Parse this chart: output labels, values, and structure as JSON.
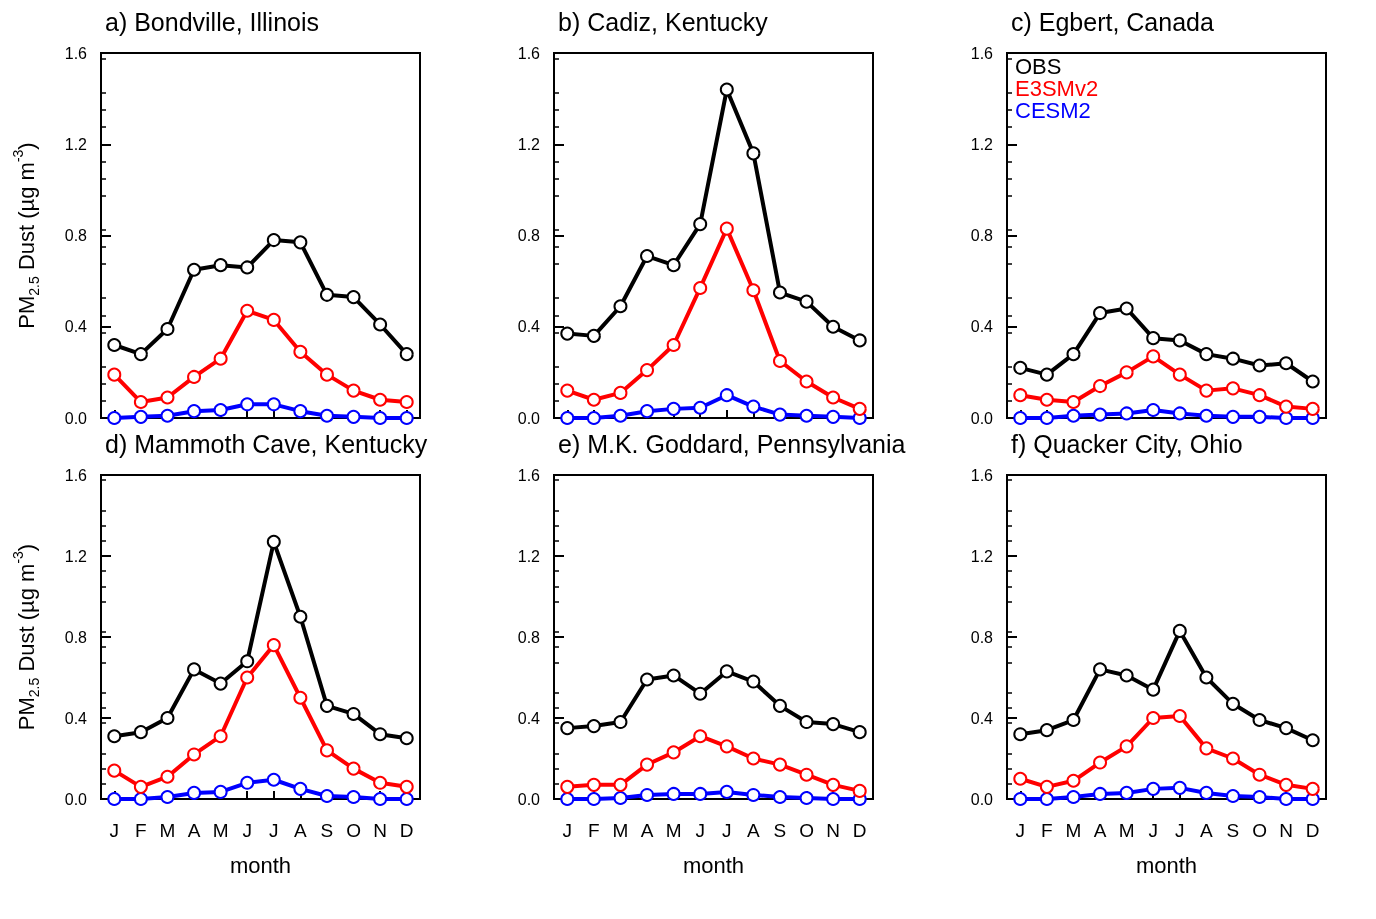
{
  "chart_data": [
    {
      "type": "line",
      "title": "a) Bondville, Illinois",
      "ylabel": "PM$_{2.5}$ Dust (µg m$^{-3}$)",
      "categories": [
        null,
        null,
        null,
        null,
        null,
        null,
        null,
        null,
        null,
        null,
        null,
        null
      ],
      "ylim": [
        0,
        1.6
      ],
      "yticks": [
        {
          "value": 0,
          "label": "0.0"
        },
        {
          "value": 0.4,
          "label": "0.4"
        },
        {
          "value": 0.8,
          "label": "0.8"
        },
        {
          "value": 1.2,
          "label": "1.2"
        },
        {
          "value": 1.6,
          "label": "1.6"
        }
      ],
      "tick_labels": "y",
      "marker": "circle",
      "legend": false,
      "series": [
        {
          "color": "#000000",
          "values": [
            0.32,
            0.28,
            0.39,
            0.65,
            0.67,
            0.66,
            0.78,
            0.77,
            0.54,
            0.53,
            0.41,
            0.28
          ]
        },
        {
          "color": "#ff0000",
          "values": [
            0.19,
            0.07,
            0.09,
            0.18,
            0.26,
            0.47,
            0.43,
            0.29,
            0.19,
            0.12,
            0.08,
            0.07
          ]
        },
        {
          "color": "#0000ff",
          "values": [
            0,
            0.005,
            0.01,
            0.03,
            0.035,
            0.06,
            0.06,
            0.03,
            0.01,
            0.005,
            0,
            0
          ]
        }
      ]
    },
    {
      "type": "line",
      "title": "b) Cadiz, Kentucky",
      "categories": [
        null,
        null,
        null,
        null,
        null,
        null,
        null,
        null,
        null,
        null,
        null,
        null
      ],
      "ylim": [
        0,
        1.6
      ],
      "yticks": [
        {
          "value": 0,
          "label": "0.0"
        },
        {
          "value": 0.4,
          "label": "0.4"
        },
        {
          "value": 0.8,
          "label": "0.8"
        },
        {
          "value": 1.2,
          "label": "1.2"
        },
        {
          "value": 1.6,
          "label": "1.6"
        }
      ],
      "tick_labels": "y",
      "marker": "circle",
      "legend": false,
      "series": [
        {
          "color": "#000000",
          "values": [
            0.37,
            0.36,
            0.49,
            0.71,
            0.67,
            0.85,
            1.44,
            1.16,
            0.55,
            0.51,
            0.4,
            0.34
          ]
        },
        {
          "color": "#ff0000",
          "values": [
            0.12,
            0.08,
            0.11,
            0.21,
            0.32,
            0.57,
            0.83,
            0.56,
            0.25,
            0.16,
            0.09,
            0.04
          ]
        },
        {
          "color": "#0000ff",
          "values": [
            0,
            0,
            0.01,
            0.03,
            0.04,
            0.045,
            0.1,
            0.05,
            0.015,
            0.01,
            0.005,
            0
          ]
        }
      ]
    },
    {
      "type": "line",
      "title": "c) Egbert, Canada",
      "categories": [
        null,
        null,
        null,
        null,
        null,
        null,
        null,
        null,
        null,
        null,
        null,
        null
      ],
      "ylim": [
        0,
        1.6
      ],
      "yticks": [
        {
          "value": 0,
          "label": "0.0"
        },
        {
          "value": 0.4,
          "label": "0.4"
        },
        {
          "value": 0.8,
          "label": "0.8"
        },
        {
          "value": 1.2,
          "label": "1.2"
        },
        {
          "value": 1.6,
          "label": "1.6"
        }
      ],
      "tick_labels": "y",
      "marker": "circle",
      "legend": "top left",
      "series": [
        {
          "name": "OBS",
          "color": "#000000",
          "values": [
            0.22,
            0.19,
            0.28,
            0.46,
            0.48,
            0.35,
            0.34,
            0.28,
            0.26,
            0.23,
            0.24,
            0.16
          ]
        },
        {
          "name": "E3SMv2",
          "color": "#ff0000",
          "values": [
            0.1,
            0.08,
            0.07,
            0.14,
            0.2,
            0.27,
            0.19,
            0.12,
            0.13,
            0.1,
            0.05,
            0.04
          ]
        },
        {
          "name": "CESM2",
          "color": "#0000ff",
          "values": [
            0,
            0,
            0.01,
            0.015,
            0.02,
            0.035,
            0.02,
            0.01,
            0.005,
            0.005,
            0,
            0
          ]
        }
      ]
    },
    {
      "type": "line",
      "title": "d) Mammoth Cave, Kentucky",
      "ylabel": "PM$_{2.5}$ Dust (µg m$^{-3}$)",
      "xlabel": "month",
      "categories": [
        "J",
        "F",
        "M",
        "A",
        "M",
        "J",
        "J",
        "A",
        "S",
        "O",
        "N",
        "D"
      ],
      "ylim": [
        0,
        1.6
      ],
      "yticks": [
        {
          "value": 0,
          "label": "0.0"
        },
        {
          "value": 0.4,
          "label": "0.4"
        },
        {
          "value": 0.8,
          "label": "0.8"
        },
        {
          "value": 1.2,
          "label": "1.2"
        },
        {
          "value": 1.6,
          "label": "1.6"
        }
      ],
      "marker": "circle",
      "legend": false,
      "series": [
        {
          "color": "#000000",
          "values": [
            0.31,
            0.33,
            0.4,
            0.64,
            0.57,
            0.68,
            1.27,
            0.9,
            0.46,
            0.42,
            0.32,
            0.3
          ]
        },
        {
          "color": "#ff0000",
          "values": [
            0.14,
            0.06,
            0.11,
            0.22,
            0.31,
            0.6,
            0.76,
            0.5,
            0.24,
            0.15,
            0.08,
            0.06
          ]
        },
        {
          "color": "#0000ff",
          "values": [
            0,
            0,
            0.01,
            0.03,
            0.035,
            0.08,
            0.095,
            0.05,
            0.015,
            0.01,
            0,
            0
          ]
        }
      ]
    },
    {
      "type": "line",
      "title": "e) M.K. Goddard, Pennsylvania",
      "xlabel": "month",
      "categories": [
        "J",
        "F",
        "M",
        "A",
        "M",
        "J",
        "J",
        "A",
        "S",
        "O",
        "N",
        "D"
      ],
      "ylim": [
        0,
        1.6
      ],
      "yticks": [
        {
          "value": 0,
          "label": "0.0"
        },
        {
          "value": 0.4,
          "label": "0.4"
        },
        {
          "value": 0.8,
          "label": "0.8"
        },
        {
          "value": 1.2,
          "label": "1.2"
        },
        {
          "value": 1.6,
          "label": "1.6"
        }
      ],
      "marker": "circle",
      "legend": false,
      "series": [
        {
          "color": "#000000",
          "values": [
            0.35,
            0.36,
            0.38,
            0.59,
            0.61,
            0.52,
            0.63,
            0.58,
            0.46,
            0.38,
            0.37,
            0.33
          ]
        },
        {
          "color": "#ff0000",
          "values": [
            0.06,
            0.07,
            0.07,
            0.17,
            0.23,
            0.31,
            0.26,
            0.2,
            0.17,
            0.12,
            0.07,
            0.04
          ]
        },
        {
          "color": "#0000ff",
          "values": [
            0,
            0,
            0.005,
            0.02,
            0.025,
            0.025,
            0.035,
            0.02,
            0.01,
            0.005,
            0,
            0
          ]
        }
      ]
    },
    {
      "type": "line",
      "title": "f) Quacker City, Ohio",
      "xlabel": "month",
      "categories": [
        "J",
        "F",
        "M",
        "A",
        "M",
        "J",
        "J",
        "A",
        "S",
        "O",
        "N",
        "D"
      ],
      "ylim": [
        0,
        1.6
      ],
      "yticks": [
        {
          "value": 0,
          "label": "0.0"
        },
        {
          "value": 0.4,
          "label": "0.4"
        },
        {
          "value": 0.8,
          "label": "0.8"
        },
        {
          "value": 1.2,
          "label": "1.2"
        },
        {
          "value": 1.6,
          "label": "1.6"
        }
      ],
      "marker": "circle",
      "legend": false,
      "series": [
        {
          "color": "#000000",
          "values": [
            0.32,
            0.34,
            0.39,
            0.64,
            0.61,
            0.54,
            0.83,
            0.6,
            0.47,
            0.39,
            0.35,
            0.29
          ]
        },
        {
          "color": "#ff0000",
          "values": [
            0.1,
            0.06,
            0.09,
            0.18,
            0.26,
            0.4,
            0.41,
            0.25,
            0.2,
            0.12,
            0.07,
            0.05
          ]
        },
        {
          "color": "#0000ff",
          "values": [
            0,
            0,
            0.01,
            0.025,
            0.03,
            0.05,
            0.055,
            0.03,
            0.015,
            0.01,
            0,
            0
          ]
        }
      ]
    }
  ]
}
